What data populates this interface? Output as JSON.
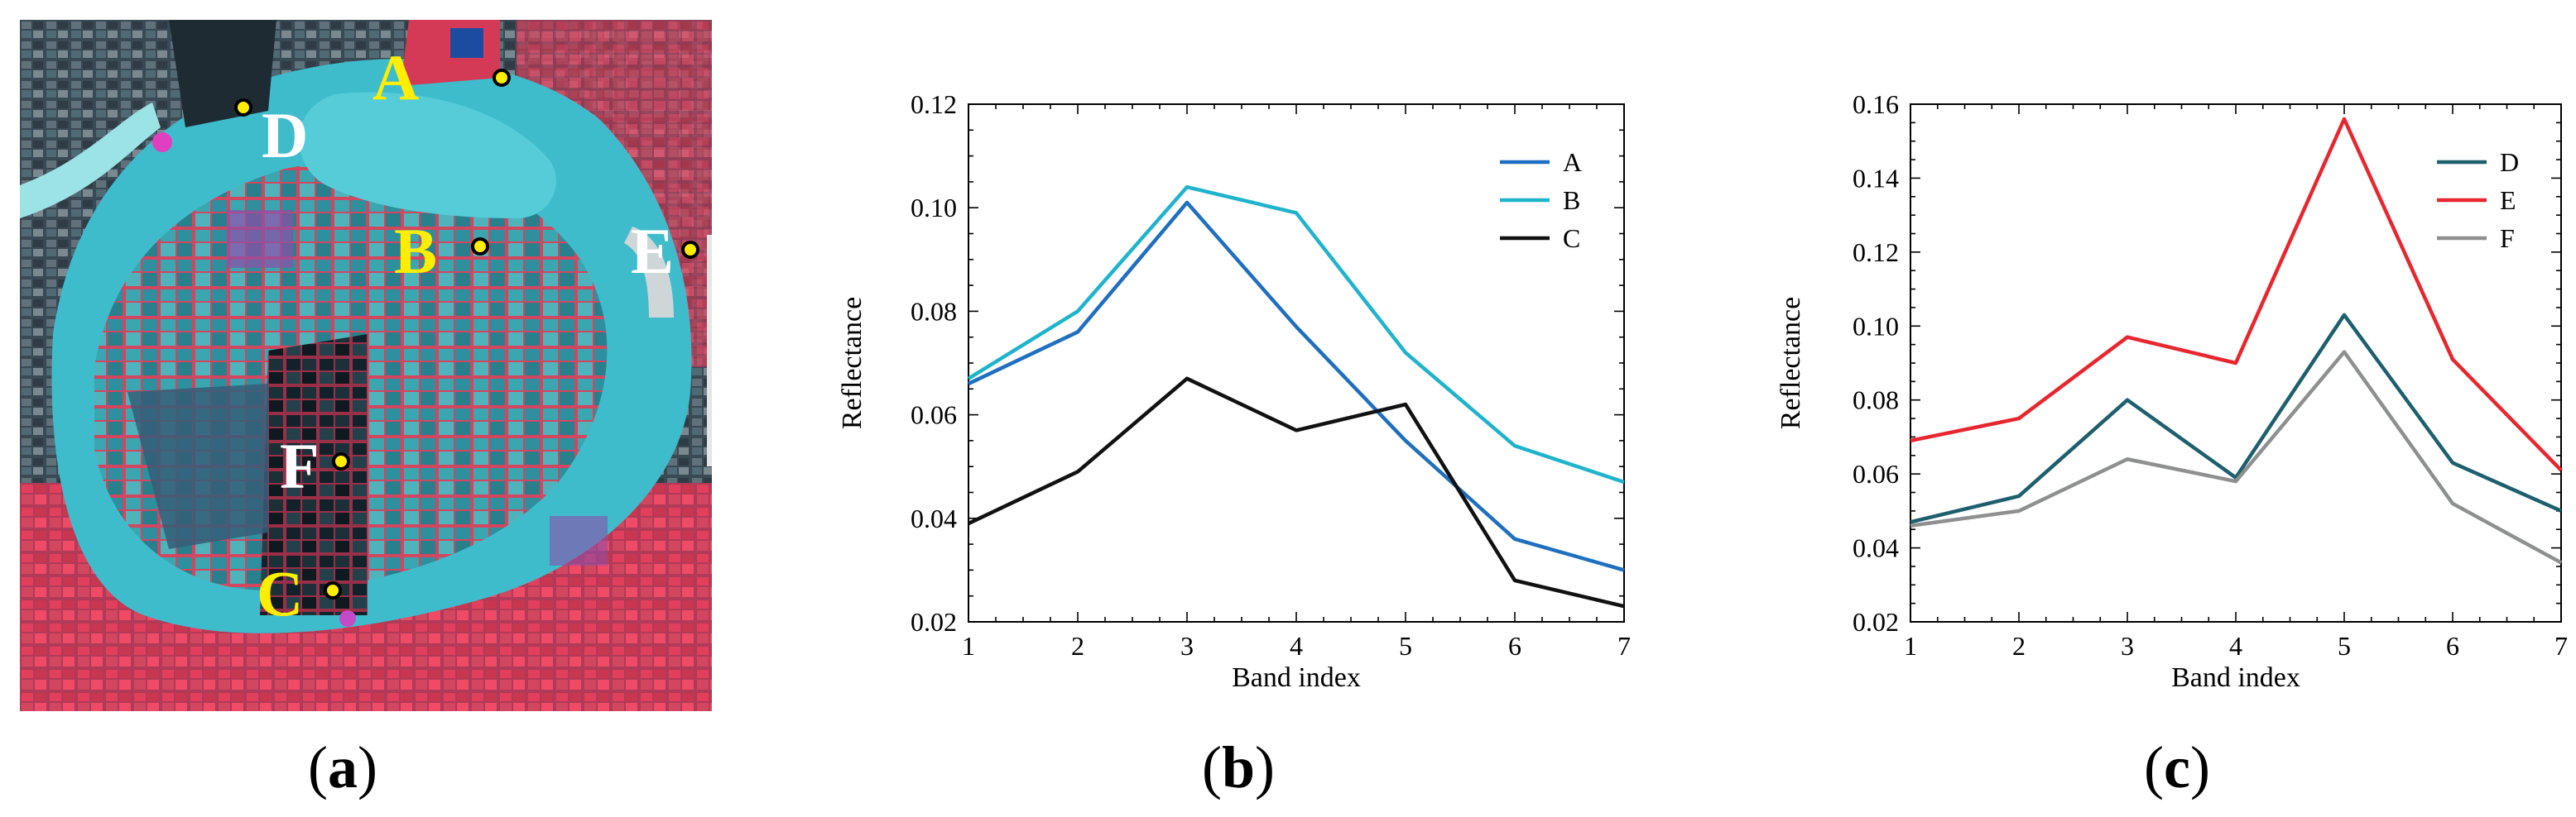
{
  "panel_a": {
    "caption_open": "(",
    "caption_letter": "a",
    "caption_close": ")",
    "points": [
      {
        "label": "A",
        "label_color": "#ffee00"
      },
      {
        "label": "B",
        "label_color": "#ffee00"
      },
      {
        "label": "C",
        "label_color": "#ffee00"
      },
      {
        "label": "D",
        "label_color": "#ffffff"
      },
      {
        "label": "E",
        "label_color": "#ffffff"
      },
      {
        "label": "F",
        "label_color": "#ffffff"
      }
    ]
  },
  "panel_b": {
    "caption_open": "(",
    "caption_letter": "b",
    "caption_close": ")"
  },
  "panel_c": {
    "caption_open": "(",
    "caption_letter": "c",
    "caption_close": ")"
  },
  "chart_data": [
    {
      "id": "b",
      "type": "line",
      "title": "",
      "xlabel": "Band index",
      "ylabel": "Reflectance",
      "x": [
        1,
        2,
        3,
        4,
        5,
        6,
        7
      ],
      "xlim": [
        1,
        7
      ],
      "ylim": [
        0.02,
        0.12
      ],
      "yticks": [
        0.02,
        0.04,
        0.06,
        0.08,
        0.1,
        0.12
      ],
      "ytick_labels": [
        "0.02",
        "0.04",
        "0.06",
        "0.08",
        "0.10",
        "0.12"
      ],
      "xtick_labels": [
        "1",
        "2",
        "3",
        "4",
        "5",
        "6",
        "7"
      ],
      "legend_position": "top-right",
      "grid": false,
      "series": [
        {
          "name": "A",
          "color": "#1f6fc0",
          "values": [
            0.066,
            0.076,
            0.101,
            0.077,
            0.055,
            0.036,
            0.03
          ]
        },
        {
          "name": "B",
          "color": "#1fb3cc",
          "values": [
            0.067,
            0.08,
            0.104,
            0.099,
            0.072,
            0.054,
            0.047
          ]
        },
        {
          "name": "C",
          "color": "#111111",
          "values": [
            0.039,
            0.049,
            0.067,
            0.057,
            0.062,
            0.028,
            0.023
          ]
        }
      ]
    },
    {
      "id": "c",
      "type": "line",
      "title": "",
      "xlabel": "Band index",
      "ylabel": "Reflectance",
      "x": [
        1,
        2,
        3,
        4,
        5,
        6,
        7
      ],
      "xlim": [
        1,
        7
      ],
      "ylim": [
        0.02,
        0.16
      ],
      "yticks": [
        0.02,
        0.04,
        0.06,
        0.08,
        0.1,
        0.12,
        0.14,
        0.16
      ],
      "ytick_labels": [
        "0.02",
        "0.04",
        "0.06",
        "0.08",
        "0.10",
        "0.12",
        "0.14",
        "0.16"
      ],
      "xtick_labels": [
        "1",
        "2",
        "3",
        "4",
        "5",
        "6",
        "7"
      ],
      "legend_position": "top-right",
      "grid": false,
      "series": [
        {
          "name": "D",
          "color": "#1e5f6e",
          "values": [
            0.047,
            0.054,
            0.08,
            0.059,
            0.103,
            0.063,
            0.05
          ]
        },
        {
          "name": "E",
          "color": "#e8262f",
          "values": [
            0.069,
            0.075,
            0.097,
            0.09,
            0.156,
            0.091,
            0.061
          ]
        },
        {
          "name": "F",
          "color": "#8e9090",
          "values": [
            0.046,
            0.05,
            0.064,
            0.058,
            0.093,
            0.052,
            0.036
          ]
        }
      ]
    }
  ]
}
